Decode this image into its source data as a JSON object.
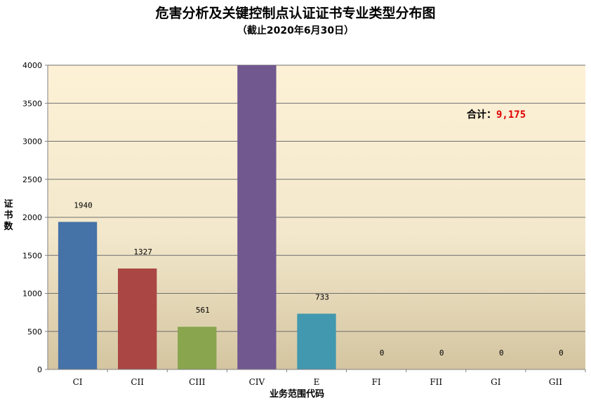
{
  "chart_data": {
    "type": "bar",
    "title": "危害分析及关键控制点认证证书专业类型分布图",
    "subtitle": "（截止2020年6月30日）",
    "xlabel": "业务范围代码",
    "ylabel": "证书数",
    "categories": [
      "CI",
      "CII",
      "CIII",
      "CIV",
      "E",
      "FI",
      "FII",
      "GI",
      "GII"
    ],
    "values": [
      1940,
      1327,
      561,
      4000,
      733,
      0,
      0,
      0,
      0
    ],
    "data_labels": [
      "1940",
      "1327",
      "561",
      "",
      "733",
      "0",
      "0",
      "0",
      "0"
    ],
    "bar_colors": [
      "#4572a7",
      "#aa4643",
      "#89a54e",
      "#71588f",
      "#4198af",
      "#db843d",
      "#93a9cf",
      "#d19392",
      "#b9cd96"
    ],
    "ylim": [
      0,
      4000
    ],
    "yticks": [
      "0",
      "500",
      "1000",
      "1500",
      "2000",
      "2500",
      "3000",
      "3500",
      "4000"
    ],
    "grid": true,
    "legend": "none",
    "total_label": "合计：",
    "total_value": "9,175",
    "total_color": "#e00000",
    "background_gradient": [
      "#fdf1d6",
      "#d4c5a0"
    ]
  }
}
